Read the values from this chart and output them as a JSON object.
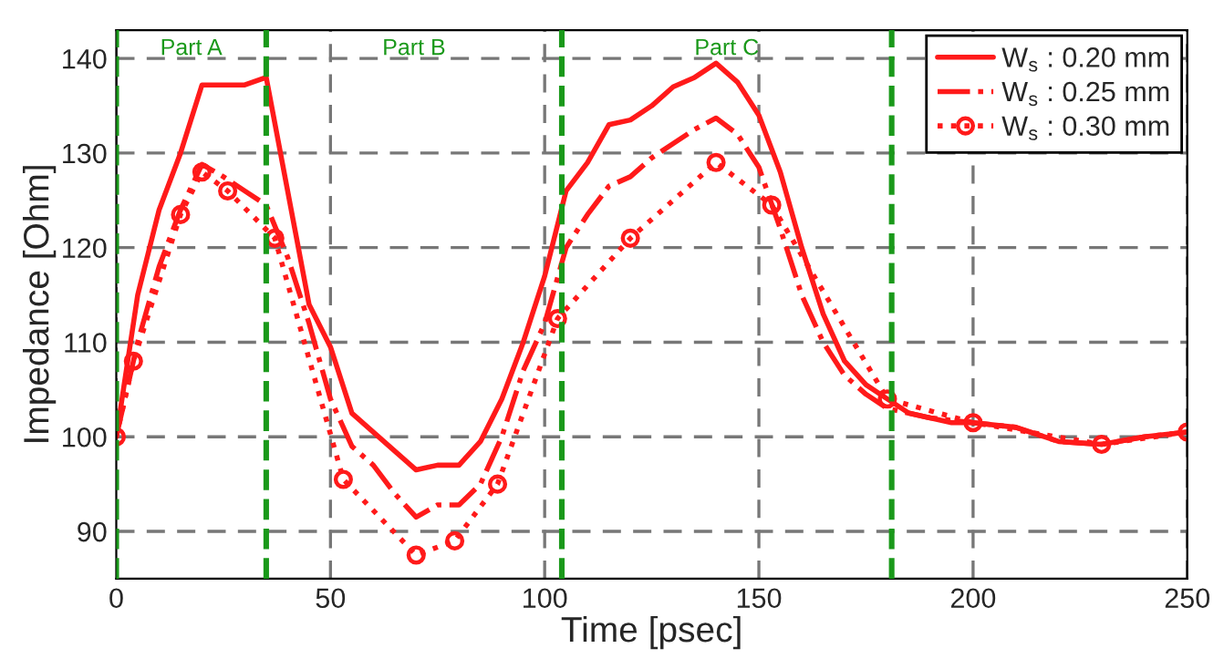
{
  "chart_data": {
    "type": "line",
    "xlabel": "Time [psec]",
    "ylabel": "Impedance [Ohm]",
    "xlim": [
      0,
      250
    ],
    "ylim": [
      85,
      143
    ],
    "xticks": [
      0,
      50,
      100,
      150,
      200,
      250
    ],
    "yticks": [
      90,
      100,
      110,
      120,
      130,
      140
    ],
    "grid": true,
    "legend": "top right",
    "annotations": [
      "Part A",
      "Part B",
      "Part C"
    ],
    "ref_lines": [
      {
        "axis": "x",
        "value": 0,
        "color": "#1a991a",
        "line_style": "dashed"
      },
      {
        "axis": "x",
        "value": 35,
        "color": "#1a991a",
        "line_style": "dashed"
      },
      {
        "axis": "x",
        "value": 104,
        "color": "#1a991a",
        "line_style": "dashed"
      },
      {
        "axis": "x",
        "value": 181,
        "color": "#1a991a",
        "line_style": "dashed"
      }
    ],
    "series": [
      {
        "name": "W$_{s}$ : 0.20 mm",
        "color": "#ff1a1a",
        "line_style": "solid",
        "marker": "none",
        "x": [
          0,
          5,
          10,
          15,
          20,
          25,
          30,
          35,
          40,
          45,
          50,
          55,
          60,
          65,
          70,
          75,
          80,
          85,
          90,
          95,
          100,
          105,
          110,
          115,
          120,
          125,
          130,
          135,
          140,
          145,
          150,
          155,
          160,
          165,
          170,
          175,
          180,
          185,
          190,
          195,
          200,
          210,
          220,
          230,
          240,
          250
        ],
        "values": [
          100,
          115,
          124,
          130,
          137.2,
          137.2,
          137.2,
          138,
          126,
          114,
          109.5,
          102.5,
          100.5,
          98.5,
          96.5,
          97,
          97,
          99.5,
          104,
          110,
          117,
          126,
          129,
          133,
          133.5,
          135,
          137,
          138,
          139.5,
          137.5,
          134,
          128,
          120,
          113,
          108,
          105.5,
          104,
          102.5,
          102,
          101.5,
          101.5,
          101,
          99.5,
          99.2,
          100,
          100.5
        ]
      },
      {
        "name": "W$_{s}$ : 0.25 mm",
        "color": "#ff1a1a",
        "line_style": "dashdot",
        "marker": "none",
        "x": [
          0,
          5,
          10,
          15,
          20,
          25,
          30,
          35,
          40,
          45,
          50,
          55,
          60,
          65,
          70,
          75,
          80,
          85,
          90,
          95,
          100,
          105,
          110,
          115,
          120,
          125,
          130,
          135,
          140,
          145,
          150,
          155,
          160,
          165,
          170,
          175,
          180,
          185,
          190,
          200,
          210,
          220,
          230,
          240,
          250
        ],
        "values": [
          100,
          110,
          118,
          124,
          128.8,
          127.5,
          126,
          124.5,
          119,
          112,
          104,
          99,
          97,
          94,
          91.5,
          92.8,
          92.8,
          95,
          100,
          107,
          112,
          120,
          123.5,
          126.5,
          127.5,
          129.5,
          131,
          132.5,
          133.7,
          132,
          128.5,
          122,
          115,
          110,
          106.5,
          104.5,
          103,
          102.5,
          102,
          101.5,
          101,
          99.5,
          99.2,
          100,
          100.5
        ]
      },
      {
        "name": "W$_{s}$ : 0.30 mm",
        "color": "#ff1a1a",
        "line_style": "dotted",
        "marker": "circle",
        "x": [
          0,
          4,
          15,
          20,
          26,
          37,
          53,
          70,
          79,
          89,
          103,
          120,
          140,
          153,
          180,
          200,
          230,
          250
        ],
        "values": [
          100,
          108,
          123.5,
          128,
          126,
          121,
          95.5,
          87.5,
          89,
          95,
          112.5,
          121,
          129,
          124.5,
          104,
          101.5,
          99.2,
          100.5
        ]
      }
    ]
  }
}
